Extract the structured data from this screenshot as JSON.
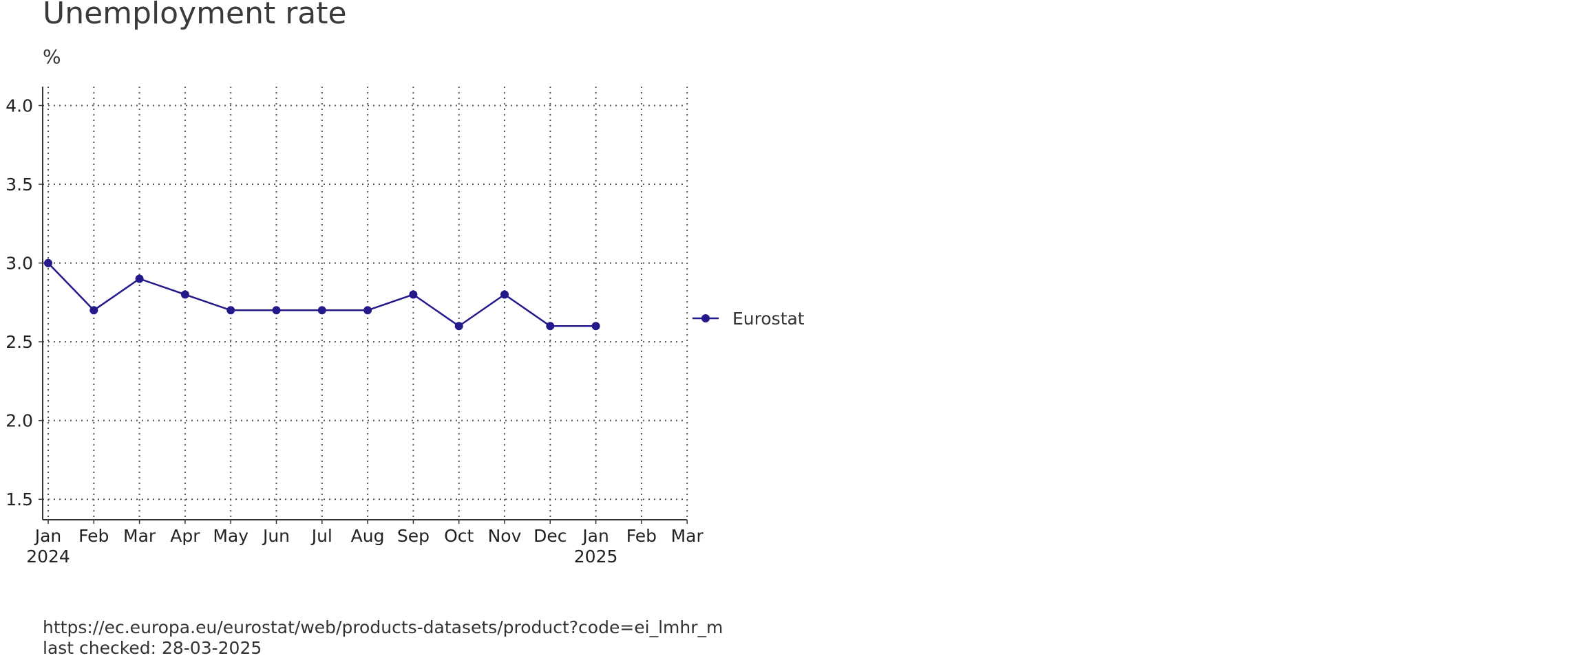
{
  "chart_data": {
    "type": "line",
    "title": "Unemployment rate",
    "ylabel": "%",
    "xlabel": "",
    "x_ticks": [
      {
        "label": "Jan",
        "year": "2024"
      },
      {
        "label": "Feb",
        "year": ""
      },
      {
        "label": "Mar",
        "year": ""
      },
      {
        "label": "Apr",
        "year": ""
      },
      {
        "label": "May",
        "year": ""
      },
      {
        "label": "Jun",
        "year": ""
      },
      {
        "label": "Jul",
        "year": ""
      },
      {
        "label": "Aug",
        "year": ""
      },
      {
        "label": "Sep",
        "year": ""
      },
      {
        "label": "Oct",
        "year": ""
      },
      {
        "label": "Nov",
        "year": ""
      },
      {
        "label": "Dec",
        "year": ""
      },
      {
        "label": "Jan",
        "year": "2025"
      },
      {
        "label": "Feb",
        "year": ""
      },
      {
        "label": "Mar",
        "year": ""
      }
    ],
    "y_ticks": [
      "1.5",
      "2.0",
      "2.5",
      "3.0",
      "3.5",
      "4.0"
    ],
    "ylim": [
      1.37,
      4.12
    ],
    "xlim": [
      "2024-01",
      "2025-03"
    ],
    "grid": true,
    "legend_position": "right",
    "series": [
      {
        "name": "Eurostat",
        "color": "#23198a",
        "x": [
          "2024-01",
          "2024-02",
          "2024-03",
          "2024-04",
          "2024-05",
          "2024-06",
          "2024-07",
          "2024-08",
          "2024-09",
          "2024-10",
          "2024-11",
          "2024-12",
          "2025-01"
        ],
        "values": [
          3.0,
          2.7,
          2.9,
          2.8,
          2.7,
          2.7,
          2.7,
          2.7,
          2.8,
          2.6,
          2.8,
          2.6,
          2.6
        ]
      }
    ]
  },
  "source": {
    "url": "https://ec.europa.eu/eurostat/web/products-datasets/product?code=ei_lmhr_m",
    "checked": "last checked: 28-03-2025"
  }
}
